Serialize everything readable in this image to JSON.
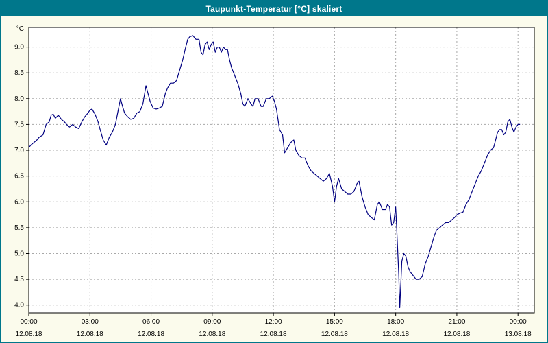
{
  "window": {
    "title_bar": {
      "title": "Taupunkt-Temperatur [°C] skaliert"
    }
  },
  "colors": {
    "titlebar_bg": "#00778B",
    "titlebar_text": "#FFFFFF",
    "window_bg": "#FBFBEC",
    "plot_bg": "#FFFFFF",
    "grid": "#A8A8A8",
    "axis": "#000000",
    "line": "#000080"
  },
  "chart_data": {
    "type": "line",
    "title": "Taupunkt-Temperatur [°C] skaliert",
    "xlabel": "",
    "ylabel": "°C",
    "legend": "none",
    "grid": "dashed",
    "xlim": [
      0,
      24.8
    ],
    "ylim": [
      3.85,
      9.38
    ],
    "y_ticks": [
      4.0,
      4.5,
      5.0,
      5.5,
      6.0,
      6.5,
      7.0,
      7.5,
      8.0,
      8.5,
      9.0
    ],
    "y_tick_labels": [
      "4.0",
      "4.5",
      "5.0",
      "5.5",
      "6.0",
      "6.5",
      "7.0",
      "7.5",
      "8.0",
      "8.5",
      "9.0"
    ],
    "x_ticks": [
      0,
      3,
      6,
      9,
      12,
      15,
      18,
      21,
      24
    ],
    "x_tick_labels": [
      "00:00",
      "03:00",
      "06:00",
      "09:00",
      "12:00",
      "15:00",
      "18:00",
      "21:00",
      "00:00"
    ],
    "x_date_labels": [
      "12.08.18",
      "12.08.18",
      "12.08.18",
      "12.08.18",
      "12.08.18",
      "12.08.18",
      "12.08.18",
      "12.08.18",
      "13.08.18"
    ],
    "line_color": "#000080",
    "points": [
      [
        0.0,
        7.05
      ],
      [
        0.1,
        7.1
      ],
      [
        0.25,
        7.15
      ],
      [
        0.4,
        7.2
      ],
      [
        0.5,
        7.25
      ],
      [
        0.7,
        7.3
      ],
      [
        0.85,
        7.5
      ],
      [
        1.0,
        7.55
      ],
      [
        1.1,
        7.68
      ],
      [
        1.2,
        7.7
      ],
      [
        1.3,
        7.62
      ],
      [
        1.45,
        7.68
      ],
      [
        1.6,
        7.6
      ],
      [
        1.75,
        7.55
      ],
      [
        1.9,
        7.48
      ],
      [
        2.0,
        7.45
      ],
      [
        2.15,
        7.5
      ],
      [
        2.3,
        7.45
      ],
      [
        2.45,
        7.42
      ],
      [
        2.6,
        7.55
      ],
      [
        2.75,
        7.65
      ],
      [
        2.9,
        7.72
      ],
      [
        3.0,
        7.78
      ],
      [
        3.1,
        7.8
      ],
      [
        3.25,
        7.7
      ],
      [
        3.4,
        7.55
      ],
      [
        3.5,
        7.4
      ],
      [
        3.65,
        7.2
      ],
      [
        3.8,
        7.1
      ],
      [
        3.95,
        7.25
      ],
      [
        4.1,
        7.35
      ],
      [
        4.25,
        7.5
      ],
      [
        4.4,
        7.8
      ],
      [
        4.5,
        8.0
      ],
      [
        4.6,
        7.85
      ],
      [
        4.7,
        7.72
      ],
      [
        4.85,
        7.65
      ],
      [
        5.0,
        7.6
      ],
      [
        5.15,
        7.62
      ],
      [
        5.3,
        7.72
      ],
      [
        5.45,
        7.75
      ],
      [
        5.6,
        7.9
      ],
      [
        5.75,
        8.25
      ],
      [
        5.85,
        8.1
      ],
      [
        5.95,
        7.95
      ],
      [
        6.1,
        7.82
      ],
      [
        6.25,
        7.8
      ],
      [
        6.4,
        7.82
      ],
      [
        6.55,
        7.85
      ],
      [
        6.7,
        8.1
      ],
      [
        6.8,
        8.2
      ],
      [
        6.95,
        8.3
      ],
      [
        7.1,
        8.3
      ],
      [
        7.25,
        8.35
      ],
      [
        7.4,
        8.55
      ],
      [
        7.55,
        8.75
      ],
      [
        7.7,
        9.0
      ],
      [
        7.8,
        9.15
      ],
      [
        7.9,
        9.2
      ],
      [
        8.05,
        9.22
      ],
      [
        8.2,
        9.15
      ],
      [
        8.35,
        9.15
      ],
      [
        8.45,
        8.9
      ],
      [
        8.55,
        8.85
      ],
      [
        8.65,
        9.05
      ],
      [
        8.75,
        9.1
      ],
      [
        8.85,
        8.95
      ],
      [
        8.95,
        9.05
      ],
      [
        9.05,
        9.1
      ],
      [
        9.15,
        8.9
      ],
      [
        9.25,
        9.0
      ],
      [
        9.35,
        9.0
      ],
      [
        9.45,
        8.9
      ],
      [
        9.55,
        9.0
      ],
      [
        9.65,
        8.95
      ],
      [
        9.75,
        8.95
      ],
      [
        9.85,
        8.75
      ],
      [
        9.95,
        8.6
      ],
      [
        10.1,
        8.45
      ],
      [
        10.25,
        8.3
      ],
      [
        10.4,
        8.1
      ],
      [
        10.5,
        7.9
      ],
      [
        10.6,
        7.85
      ],
      [
        10.75,
        8.0
      ],
      [
        10.9,
        7.9
      ],
      [
        11.0,
        7.85
      ],
      [
        11.1,
        8.0
      ],
      [
        11.25,
        8.0
      ],
      [
        11.4,
        7.85
      ],
      [
        11.5,
        7.85
      ],
      [
        11.65,
        8.0
      ],
      [
        11.8,
        8.0
      ],
      [
        11.95,
        8.05
      ],
      [
        12.05,
        7.95
      ],
      [
        12.15,
        7.8
      ],
      [
        12.3,
        7.4
      ],
      [
        12.45,
        7.3
      ],
      [
        12.55,
        6.95
      ],
      [
        12.7,
        7.05
      ],
      [
        12.85,
        7.15
      ],
      [
        13.0,
        7.2
      ],
      [
        13.1,
        7.0
      ],
      [
        13.25,
        6.9
      ],
      [
        13.4,
        6.85
      ],
      [
        13.55,
        6.85
      ],
      [
        13.7,
        6.7
      ],
      [
        13.85,
        6.6
      ],
      [
        14.0,
        6.55
      ],
      [
        14.15,
        6.5
      ],
      [
        14.3,
        6.45
      ],
      [
        14.45,
        6.4
      ],
      [
        14.6,
        6.45
      ],
      [
        14.75,
        6.55
      ],
      [
        14.9,
        6.3
      ],
      [
        15.0,
        6.0
      ],
      [
        15.1,
        6.3
      ],
      [
        15.2,
        6.45
      ],
      [
        15.35,
        6.25
      ],
      [
        15.5,
        6.2
      ],
      [
        15.65,
        6.15
      ],
      [
        15.8,
        6.15
      ],
      [
        15.95,
        6.2
      ],
      [
        16.1,
        6.35
      ],
      [
        16.2,
        6.4
      ],
      [
        16.35,
        6.1
      ],
      [
        16.5,
        5.9
      ],
      [
        16.65,
        5.75
      ],
      [
        16.8,
        5.7
      ],
      [
        16.95,
        5.65
      ],
      [
        17.1,
        5.95
      ],
      [
        17.2,
        6.0
      ],
      [
        17.35,
        5.85
      ],
      [
        17.5,
        5.85
      ],
      [
        17.6,
        5.95
      ],
      [
        17.7,
        5.9
      ],
      [
        17.8,
        5.55
      ],
      [
        17.9,
        5.6
      ],
      [
        18.0,
        5.9
      ],
      [
        18.05,
        5.5
      ],
      [
        18.15,
        4.6
      ],
      [
        18.2,
        3.95
      ],
      [
        18.3,
        4.85
      ],
      [
        18.4,
        5.0
      ],
      [
        18.5,
        4.95
      ],
      [
        18.6,
        4.75
      ],
      [
        18.7,
        4.65
      ],
      [
        18.8,
        4.6
      ],
      [
        18.9,
        4.55
      ],
      [
        19.0,
        4.5
      ],
      [
        19.15,
        4.5
      ],
      [
        19.3,
        4.55
      ],
      [
        19.45,
        4.8
      ],
      [
        19.6,
        4.95
      ],
      [
        19.75,
        5.15
      ],
      [
        19.9,
        5.35
      ],
      [
        20.0,
        5.45
      ],
      [
        20.15,
        5.5
      ],
      [
        20.3,
        5.55
      ],
      [
        20.45,
        5.6
      ],
      [
        20.6,
        5.6
      ],
      [
        20.75,
        5.65
      ],
      [
        20.9,
        5.7
      ],
      [
        21.0,
        5.75
      ],
      [
        21.15,
        5.78
      ],
      [
        21.3,
        5.8
      ],
      [
        21.45,
        5.95
      ],
      [
        21.6,
        6.05
      ],
      [
        21.75,
        6.2
      ],
      [
        21.9,
        6.35
      ],
      [
        22.05,
        6.5
      ],
      [
        22.2,
        6.6
      ],
      [
        22.35,
        6.75
      ],
      [
        22.5,
        6.9
      ],
      [
        22.65,
        7.0
      ],
      [
        22.8,
        7.05
      ],
      [
        22.9,
        7.2
      ],
      [
        23.0,
        7.35
      ],
      [
        23.1,
        7.4
      ],
      [
        23.2,
        7.4
      ],
      [
        23.3,
        7.3
      ],
      [
        23.4,
        7.35
      ],
      [
        23.5,
        7.55
      ],
      [
        23.6,
        7.6
      ],
      [
        23.7,
        7.45
      ],
      [
        23.8,
        7.35
      ],
      [
        23.9,
        7.45
      ],
      [
        24.0,
        7.5
      ],
      [
        24.1,
        7.5
      ]
    ]
  }
}
